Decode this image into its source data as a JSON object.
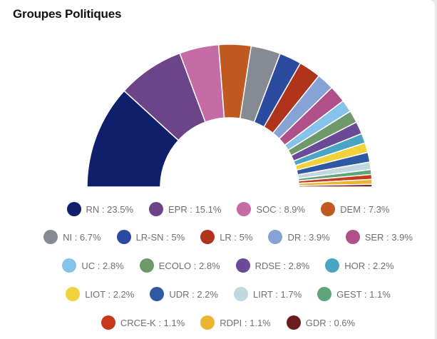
{
  "card": {
    "title": "Groupes Politiques"
  },
  "chart_data": {
    "type": "pie",
    "variant": "half-donut",
    "title": "Groupes Politiques",
    "series": [
      {
        "name": "RN",
        "label": "RN : 23.5%",
        "value": 23.5,
        "color": "#0f1f6b"
      },
      {
        "name": "EPR",
        "label": "EPR : 15.1%",
        "value": 15.1,
        "color": "#6b4489"
      },
      {
        "name": "SOC",
        "label": "SOC : 8.9%",
        "value": 8.9,
        "color": "#c56ba6"
      },
      {
        "name": "DEM",
        "label": "DEM : 7.3%",
        "value": 7.3,
        "color": "#c15a21"
      },
      {
        "name": "NI",
        "label": "NI : 6.7%",
        "value": 6.7,
        "color": "#868a92"
      },
      {
        "name": "LR-SN",
        "label": "LR-SN : 5%",
        "value": 5.0,
        "color": "#2c4aa0"
      },
      {
        "name": "LR",
        "label": "LR : 5%",
        "value": 5.0,
        "color": "#b0331b"
      },
      {
        "name": "DR",
        "label": "DR : 3.9%",
        "value": 3.9,
        "color": "#87a3d6"
      },
      {
        "name": "SER",
        "label": "SER : 3.9%",
        "value": 3.9,
        "color": "#b0508a"
      },
      {
        "name": "UC",
        "label": "UC : 2.8%",
        "value": 2.8,
        "color": "#86c3ea"
      },
      {
        "name": "ECOLO",
        "label": "ECOLO : 2.8%",
        "value": 2.8,
        "color": "#6e9a6b"
      },
      {
        "name": "RDSE",
        "label": "RDSE : 2.8%",
        "value": 2.8,
        "color": "#6b4a98"
      },
      {
        "name": "HOR",
        "label": "HOR : 2.2%",
        "value": 2.2,
        "color": "#4aa4c4"
      },
      {
        "name": "LIOT",
        "label": "LIOT : 2.2%",
        "value": 2.2,
        "color": "#f2d23a"
      },
      {
        "name": "UDR",
        "label": "UDR : 2.2%",
        "value": 2.2,
        "color": "#2f5aa3"
      },
      {
        "name": "LIRT",
        "label": "LIRT : 1.7%",
        "value": 1.7,
        "color": "#c3d7e0"
      },
      {
        "name": "GEST",
        "label": "GEST : 1.1%",
        "value": 1.1,
        "color": "#5ea57a"
      },
      {
        "name": "CRCE-K",
        "label": "CRCE-K : 1.1%",
        "value": 1.1,
        "color": "#c8381b"
      },
      {
        "name": "RDPI",
        "label": "RDPI : 1.1%",
        "value": 1.1,
        "color": "#eab530"
      },
      {
        "name": "GDR",
        "label": "GDR : 0.6%",
        "value": 0.6,
        "color": "#6b1c1c"
      }
    ],
    "legend_position": "bottom"
  }
}
